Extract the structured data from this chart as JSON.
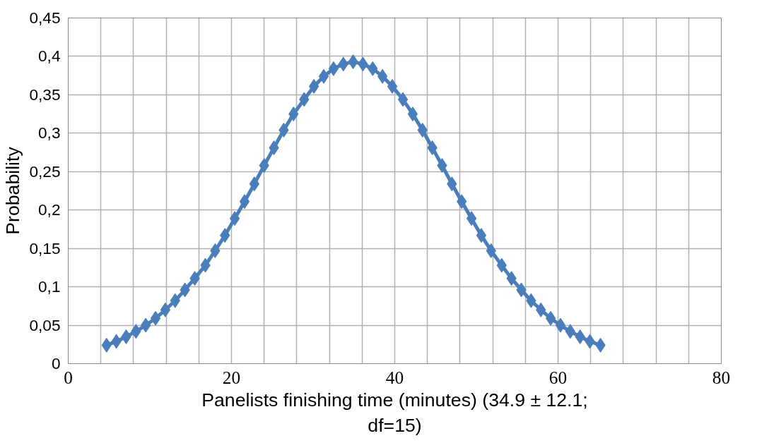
{
  "chart_data": {
    "type": "line",
    "xlabel": "Panelists finishing time (minutes) (34.9 ± 12.1; df=15)",
    "ylabel": "Probability",
    "x": [
      4.7,
      5.9,
      7.1,
      8.3,
      9.5,
      10.7,
      11.9,
      13.1,
      14.3,
      15.5,
      16.8,
      18.0,
      19.2,
      20.4,
      21.6,
      22.8,
      24.0,
      25.2,
      26.4,
      27.6,
      28.9,
      30.1,
      31.3,
      32.5,
      33.7,
      34.9,
      36.1,
      37.3,
      38.5,
      39.7,
      41.0,
      42.2,
      43.4,
      44.6,
      45.8,
      47.0,
      48.2,
      49.4,
      50.6,
      51.8,
      53.1,
      54.3,
      55.5,
      56.7,
      57.9,
      59.1,
      60.3,
      61.5,
      62.7,
      63.9,
      65.2
    ],
    "series": [
      {
        "color": "#4a7ebb",
        "values": [
          0.024,
          0.029,
          0.035,
          0.042,
          0.05,
          0.059,
          0.07,
          0.082,
          0.096,
          0.111,
          0.128,
          0.147,
          0.167,
          0.189,
          0.211,
          0.234,
          0.258,
          0.281,
          0.304,
          0.325,
          0.344,
          0.361,
          0.374,
          0.384,
          0.39,
          0.393,
          0.39,
          0.384,
          0.374,
          0.361,
          0.344,
          0.325,
          0.304,
          0.281,
          0.258,
          0.234,
          0.211,
          0.189,
          0.167,
          0.147,
          0.128,
          0.111,
          0.096,
          0.082,
          0.07,
          0.059,
          0.05,
          0.042,
          0.035,
          0.029,
          0.024
        ]
      }
    ],
    "xlim": [
      0,
      80
    ],
    "ylim": [
      0,
      0.45
    ],
    "xticks": [
      0,
      {
        "value": 4,
        "label": null
      },
      {
        "value": 8,
        "label": null
      },
      {
        "value": 12,
        "label": null
      },
      {
        "value": 16,
        "label": null
      },
      20,
      {
        "value": 24,
        "label": null
      },
      {
        "value": 28,
        "label": null
      },
      {
        "value": 32,
        "label": null
      },
      {
        "value": 36,
        "label": null
      },
      40,
      {
        "value": 44,
        "label": null
      },
      {
        "value": 48,
        "label": null
      },
      {
        "value": 52,
        "label": null
      },
      {
        "value": 56,
        "label": null
      },
      60,
      {
        "value": 64,
        "label": null
      },
      {
        "value": 68,
        "label": null
      },
      {
        "value": 72,
        "label": null
      },
      {
        "value": 76,
        "label": null
      },
      80
    ],
    "yticks": [
      0,
      {
        "value": 0.05,
        "label": "0,05"
      },
      {
        "value": 0.1,
        "label": "0,1"
      },
      {
        "value": 0.15,
        "label": "0,15"
      },
      {
        "value": 0.2,
        "label": "0,2"
      },
      {
        "value": 0.25,
        "label": "0,25"
      },
      {
        "value": 0.3,
        "label": "0,3"
      },
      {
        "value": 0.35,
        "label": "0,35"
      },
      {
        "value": 0.4,
        "label": "0,4"
      },
      {
        "value": 0.45,
        "label": "0,45"
      }
    ],
    "grid": true,
    "marker": "diamond",
    "line_style": "solid"
  }
}
